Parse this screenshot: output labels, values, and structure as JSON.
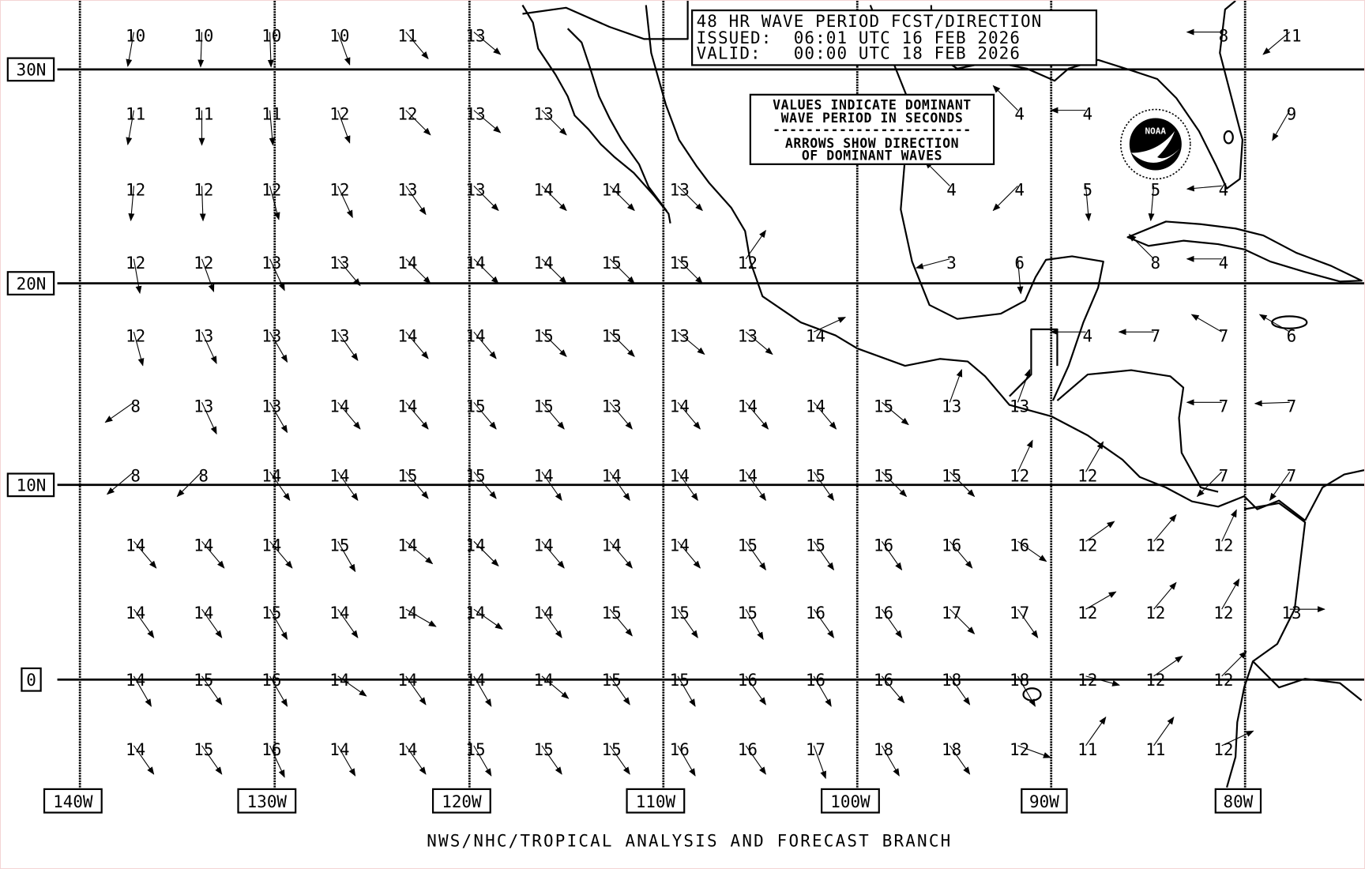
{
  "title_box": {
    "line1": "48 HR WAVE PERIOD FCST/DIRECTION",
    "line2": "ISSUED:  06:01 UTC 16 FEB 2026",
    "line3": "VALID:   00:00 UTC 18 FEB 2026"
  },
  "legend_box": {
    "line1": "VALUES INDICATE DOMINANT",
    "line2": "WAVE PERIOD IN SECONDS",
    "divider": "------------------------",
    "line3": "ARROWS SHOW DIRECTION",
    "line4": "OF DOMINANT WAVES"
  },
  "logo": {
    "text": "NOAA",
    "ring_text": "NATIONAL OCEANIC AND ATMOSPHERIC ADMINISTRATION U.S. DEPARTMENT OF COMMERCE"
  },
  "lat_labels": [
    "30N",
    "20N",
    "10N",
    "0"
  ],
  "lon_labels": [
    "140W",
    "130W",
    "120W",
    "110W",
    "100W",
    "90W",
    "80W"
  ],
  "footer": "NWS/NHC/TROPICAL ANALYSIS AND FORECAST BRANCH",
  "colors": {
    "ink": "#000000",
    "background": "#ffffff"
  },
  "grid_note_units": "seconds",
  "wave_grid": [
    [
      [
        0,
        10,
        190
      ],
      [
        1,
        10,
        182
      ],
      [
        2,
        10,
        178
      ],
      [
        3,
        10,
        160
      ],
      [
        4,
        11,
        140
      ],
      [
        5,
        13,
        130
      ],
      [
        16,
        8,
        270
      ],
      [
        17,
        11,
        230
      ]
    ],
    [
      [
        0,
        11,
        190
      ],
      [
        1,
        11,
        180
      ],
      [
        2,
        11,
        175
      ],
      [
        3,
        12,
        160
      ],
      [
        4,
        12,
        135
      ],
      [
        5,
        13,
        130
      ],
      [
        6,
        13,
        135
      ],
      [
        13,
        4,
        315
      ],
      [
        14,
        4,
        270
      ],
      [
        17,
        9,
        210
      ]
    ],
    [
      [
        0,
        12,
        185
      ],
      [
        1,
        12,
        178
      ],
      [
        2,
        12,
        165
      ],
      [
        3,
        12,
        155
      ],
      [
        4,
        13,
        145
      ],
      [
        5,
        13,
        135
      ],
      [
        6,
        14,
        135
      ],
      [
        7,
        14,
        135
      ],
      [
        8,
        13,
        135
      ],
      [
        12,
        4,
        315
      ],
      [
        13,
        4,
        225
      ],
      [
        14,
        5,
        175
      ],
      [
        15,
        5,
        185
      ],
      [
        16,
        4,
        265
      ]
    ],
    [
      [
        0,
        12,
        170
      ],
      [
        1,
        12,
        160
      ],
      [
        2,
        13,
        155
      ],
      [
        3,
        13,
        140
      ],
      [
        4,
        14,
        135
      ],
      [
        5,
        14,
        135
      ],
      [
        6,
        14,
        135
      ],
      [
        7,
        15,
        135
      ],
      [
        8,
        15,
        135
      ],
      [
        9,
        12,
        35
      ],
      [
        12,
        3,
        255
      ],
      [
        13,
        6,
        175
      ],
      [
        15,
        8,
        315
      ],
      [
        16,
        4,
        270
      ]
    ],
    [
      [
        0,
        12,
        165
      ],
      [
        1,
        13,
        155
      ],
      [
        2,
        13,
        150
      ],
      [
        3,
        13,
        145
      ],
      [
        4,
        14,
        140
      ],
      [
        5,
        14,
        140
      ],
      [
        6,
        15,
        135
      ],
      [
        7,
        15,
        135
      ],
      [
        8,
        13,
        130
      ],
      [
        9,
        13,
        130
      ],
      [
        10,
        14,
        65
      ],
      [
        14,
        4,
        270
      ],
      [
        15,
        7,
        270
      ],
      [
        16,
        7,
        300
      ],
      [
        17,
        6,
        300
      ]
    ],
    [
      [
        0,
        8,
        235
      ],
      [
        1,
        13,
        155
      ],
      [
        2,
        13,
        150
      ],
      [
        3,
        14,
        140
      ],
      [
        4,
        14,
        140
      ],
      [
        5,
        15,
        140
      ],
      [
        6,
        15,
        140
      ],
      [
        7,
        13,
        140
      ],
      [
        8,
        14,
        140
      ],
      [
        9,
        14,
        140
      ],
      [
        10,
        14,
        140
      ],
      [
        11,
        15,
        130
      ],
      [
        12,
        13,
        20
      ],
      [
        13,
        13,
        20
      ],
      [
        16,
        7,
        270
      ],
      [
        17,
        7,
        268
      ]
    ],
    [
      [
        0,
        8,
        230
      ],
      [
        1,
        8,
        225
      ],
      [
        2,
        14,
        145
      ],
      [
        3,
        14,
        145
      ],
      [
        4,
        15,
        140
      ],
      [
        5,
        15,
        140
      ],
      [
        6,
        14,
        145
      ],
      [
        7,
        14,
        145
      ],
      [
        8,
        14,
        145
      ],
      [
        9,
        14,
        145
      ],
      [
        10,
        15,
        145
      ],
      [
        11,
        15,
        135
      ],
      [
        12,
        15,
        135
      ],
      [
        13,
        12,
        25
      ],
      [
        14,
        12,
        30
      ],
      [
        16,
        7,
        225
      ],
      [
        17,
        7,
        215
      ]
    ],
    [
      [
        0,
        14,
        140
      ],
      [
        1,
        14,
        140
      ],
      [
        2,
        14,
        140
      ],
      [
        3,
        15,
        150
      ],
      [
        4,
        14,
        130
      ],
      [
        5,
        14,
        135
      ],
      [
        6,
        14,
        140
      ],
      [
        7,
        14,
        140
      ],
      [
        8,
        14,
        140
      ],
      [
        9,
        15,
        145
      ],
      [
        10,
        15,
        145
      ],
      [
        11,
        16,
        145
      ],
      [
        12,
        16,
        140
      ],
      [
        13,
        16,
        125
      ],
      [
        14,
        12,
        55
      ],
      [
        15,
        12,
        40
      ],
      [
        16,
        12,
        25
      ]
    ],
    [
      [
        0,
        14,
        145
      ],
      [
        1,
        14,
        145
      ],
      [
        2,
        15,
        150
      ],
      [
        3,
        14,
        145
      ],
      [
        4,
        14,
        120
      ],
      [
        5,
        14,
        125
      ],
      [
        6,
        14,
        145
      ],
      [
        7,
        15,
        140
      ],
      [
        8,
        15,
        145
      ],
      [
        9,
        15,
        150
      ],
      [
        10,
        16,
        145
      ],
      [
        11,
        16,
        145
      ],
      [
        12,
        17,
        135
      ],
      [
        13,
        17,
        145
      ],
      [
        14,
        12,
        60
      ],
      [
        15,
        12,
        40
      ],
      [
        16,
        12,
        30
      ],
      [
        17,
        13,
        90
      ]
    ],
    [
      [
        0,
        14,
        150
      ],
      [
        1,
        15,
        145
      ],
      [
        2,
        16,
        150
      ],
      [
        3,
        14,
        125
      ],
      [
        4,
        14,
        145
      ],
      [
        5,
        14,
        150
      ],
      [
        6,
        14,
        130
      ],
      [
        7,
        15,
        145
      ],
      [
        8,
        15,
        150
      ],
      [
        9,
        16,
        145
      ],
      [
        10,
        16,
        150
      ],
      [
        11,
        16,
        140
      ],
      [
        12,
        18,
        145
      ],
      [
        13,
        18,
        150
      ],
      [
        14,
        12,
        105
      ],
      [
        15,
        12,
        55
      ],
      [
        16,
        12,
        45
      ]
    ],
    [
      [
        0,
        14,
        145
      ],
      [
        1,
        15,
        145
      ],
      [
        2,
        16,
        155
      ],
      [
        3,
        14,
        150
      ],
      [
        4,
        14,
        145
      ],
      [
        5,
        15,
        150
      ],
      [
        6,
        15,
        145
      ],
      [
        7,
        15,
        145
      ],
      [
        8,
        16,
        150
      ],
      [
        9,
        16,
        145
      ],
      [
        10,
        17,
        160
      ],
      [
        11,
        18,
        150
      ],
      [
        12,
        18,
        145
      ],
      [
        13,
        12,
        110
      ],
      [
        14,
        11,
        35
      ],
      [
        15,
        11,
        35
      ],
      [
        16,
        12,
        65
      ]
    ]
  ]
}
